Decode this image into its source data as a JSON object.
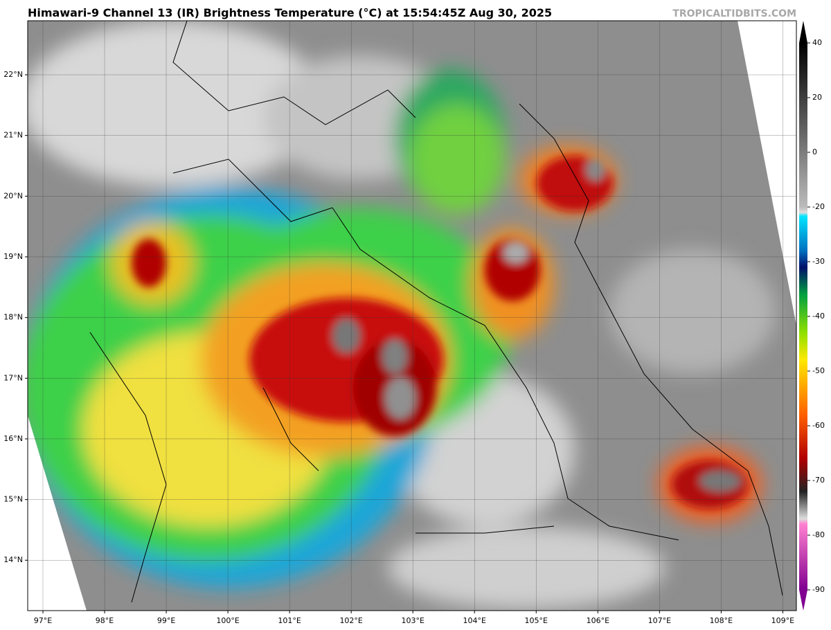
{
  "title": "Himawari-9 Channel 13 (IR) Brightness Temperature (°C) at 15:54:45Z Aug 30, 2025",
  "watermark": "TROPICALTIDBITS.COM",
  "map": {
    "lon_lim": [
      96.753,
      109.22
    ],
    "lat_lim": [
      13.17,
      22.89
    ],
    "lon_ticks": [
      {
        "value": 97,
        "label": "97°E"
      },
      {
        "value": 98,
        "label": "98°E"
      },
      {
        "value": 99,
        "label": "99°E"
      },
      {
        "value": 100,
        "label": "100°E"
      },
      {
        "value": 101,
        "label": "101°E"
      },
      {
        "value": 102,
        "label": "102°E"
      },
      {
        "value": 103,
        "label": "103°E"
      },
      {
        "value": 104,
        "label": "104°E"
      },
      {
        "value": 105,
        "label": "105°E"
      },
      {
        "value": 106,
        "label": "106°E"
      },
      {
        "value": 107,
        "label": "107°E"
      },
      {
        "value": 108,
        "label": "108°E"
      },
      {
        "value": 109,
        "label": "109°E"
      }
    ],
    "lat_ticks": [
      {
        "value": 22,
        "label": "22°N"
      },
      {
        "value": 21,
        "label": "21°N"
      },
      {
        "value": 20,
        "label": "20°N"
      },
      {
        "value": 19,
        "label": "19°N"
      },
      {
        "value": 18,
        "label": "18°N"
      },
      {
        "value": 17,
        "label": "17°N"
      },
      {
        "value": 16,
        "label": "16°N"
      },
      {
        "value": 15,
        "label": "15°N"
      },
      {
        "value": 14,
        "label": "14°N"
      }
    ]
  },
  "colorbar": {
    "ticks": [
      40,
      20,
      0,
      -20,
      -30,
      -40,
      -50,
      -60,
      -70,
      -80,
      -90
    ]
  }
}
